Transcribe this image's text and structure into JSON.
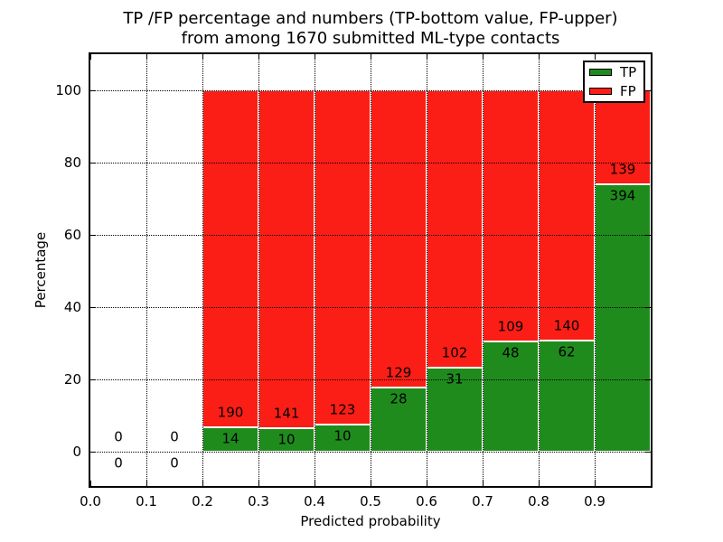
{
  "title": {
    "line1": "TP /FP percentage and numbers (TP-bottom value, FP-upper)",
    "line2": "from among 1670 submitted ML-type contacts"
  },
  "axes": {
    "xlabel": "Predicted probability",
    "ylabel": "Percentage",
    "x_tick_labels": [
      "0.0",
      "0.1",
      "0.2",
      "0.3",
      "0.4",
      "0.5",
      "0.6",
      "0.7",
      "0.8",
      "0.9"
    ],
    "y_tick_labels": [
      "0",
      "20",
      "40",
      "60",
      "80",
      "100"
    ],
    "y_tick_values": [
      0,
      20,
      40,
      60,
      80,
      100
    ]
  },
  "legend": {
    "items": [
      {
        "label": "TP",
        "color": "#1f8b1d"
      },
      {
        "label": "FP",
        "color": "#fb1e16"
      }
    ]
  },
  "chart_data": {
    "type": "bar",
    "stacked": true,
    "normalized": "each bar totals 100%; green segment height = TP/(TP+FP)*100",
    "title": "TP /FP percentage and numbers (TP-bottom value, FP-upper) from among 1670 submitted ML-type contacts",
    "xlabel": "Predicted probability",
    "ylabel": "Percentage",
    "xlim": [
      0.0,
      1.0
    ],
    "ylim": [
      -10,
      110
    ],
    "grid": "dotted both axes",
    "legend_position": "upper right",
    "bin_edges": [
      0.0,
      0.1,
      0.2,
      0.3,
      0.4,
      0.5,
      0.6,
      0.7,
      0.8,
      0.9,
      1.0
    ],
    "categories": [
      "0.0-0.1",
      "0.1-0.2",
      "0.2-0.3",
      "0.3-0.4",
      "0.4-0.5",
      "0.5-0.6",
      "0.6-0.7",
      "0.7-0.8",
      "0.8-0.9",
      "0.9-1.0"
    ],
    "series": [
      {
        "name": "TP",
        "color": "#1f8b1d",
        "counts": [
          0,
          0,
          14,
          10,
          10,
          28,
          31,
          48,
          62,
          394
        ]
      },
      {
        "name": "FP",
        "color": "#fb1e16",
        "counts": [
          0,
          0,
          190,
          141,
          123,
          129,
          102,
          109,
          140,
          139
        ]
      }
    ],
    "tp_percent": [
      null,
      null,
      6.86,
      6.62,
      7.52,
      17.83,
      23.31,
      30.57,
      30.69,
      73.92
    ],
    "total_submitted": 1670
  }
}
